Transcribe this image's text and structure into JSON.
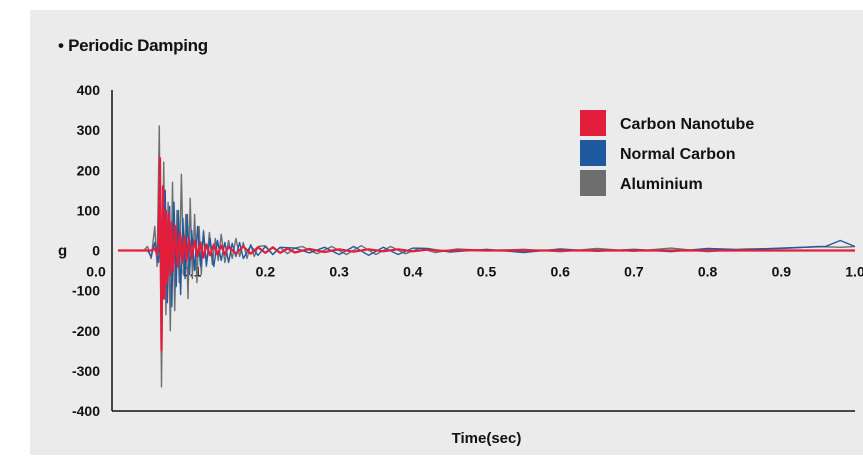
{
  "chart_data": {
    "type": "line",
    "title": "• Periodic Damping",
    "xlabel": "Time(sec)",
    "ylabel": "g",
    "xlim": [
      0,
      1.0
    ],
    "ylim": [
      -400,
      400
    ],
    "x_ticks": [
      "0.0",
      "0.1",
      "0.2",
      "0.3",
      "0.4",
      "0.5",
      "0.6",
      "0.7",
      "0.8",
      "0.9",
      "1.0"
    ],
    "y_ticks": [
      "400",
      "300",
      "200",
      "100",
      "0",
      "-100",
      "-200",
      "-300",
      "-400"
    ],
    "legend_position": "top-right",
    "grid": false,
    "series": [
      {
        "name": "Aluminium",
        "color": "#6d6e70",
        "x": [
          0,
          0.035,
          0.04,
          0.045,
          0.048,
          0.05,
          0.053,
          0.056,
          0.059,
          0.062,
          0.065,
          0.068,
          0.071,
          0.074,
          0.077,
          0.08,
          0.083,
          0.086,
          0.089,
          0.092,
          0.095,
          0.098,
          0.101,
          0.104,
          0.107,
          0.11,
          0.113,
          0.116,
          0.12,
          0.124,
          0.128,
          0.132,
          0.136,
          0.14,
          0.145,
          0.15,
          0.155,
          0.16,
          0.165,
          0.17,
          0.175,
          0.18,
          0.185,
          0.19,
          0.2,
          0.21,
          0.22,
          0.23,
          0.24,
          0.25,
          0.27,
          0.29,
          0.31,
          0.33,
          0.35,
          0.37,
          0.39,
          0.41,
          0.43,
          0.46,
          0.5,
          0.55,
          0.6,
          0.65,
          0.7,
          0.75,
          0.8,
          0.85,
          0.9,
          0.95,
          0.98,
          1.0
        ],
        "values": [
          0,
          0,
          10,
          -20,
          30,
          60,
          -40,
          310,
          -340,
          220,
          -160,
          120,
          -200,
          170,
          -150,
          100,
          -80,
          190,
          -60,
          90,
          -120,
          130,
          -70,
          90,
          -80,
          60,
          -60,
          50,
          -40,
          45,
          -35,
          30,
          -25,
          40,
          -30,
          25,
          -20,
          30,
          -15,
          20,
          -20,
          15,
          -15,
          10,
          12,
          -10,
          8,
          -8,
          6,
          10,
          -8,
          10,
          -10,
          12,
          -10,
          10,
          -8,
          6,
          -5,
          4,
          0,
          3,
          -3,
          5,
          -2,
          6,
          -3,
          4,
          5,
          10,
          8,
          10
        ]
      },
      {
        "name": "Normal Carbon",
        "color": "#1f5aa0",
        "x": [
          0,
          0.04,
          0.045,
          0.05,
          0.055,
          0.058,
          0.061,
          0.064,
          0.067,
          0.07,
          0.073,
          0.076,
          0.079,
          0.082,
          0.085,
          0.088,
          0.091,
          0.094,
          0.097,
          0.1,
          0.104,
          0.108,
          0.112,
          0.116,
          0.12,
          0.125,
          0.13,
          0.135,
          0.14,
          0.145,
          0.15,
          0.155,
          0.16,
          0.165,
          0.17,
          0.18,
          0.19,
          0.2,
          0.21,
          0.22,
          0.24,
          0.26,
          0.28,
          0.3,
          0.32,
          0.34,
          0.36,
          0.38,
          0.4,
          0.42,
          0.45,
          0.5,
          0.55,
          0.6,
          0.65,
          0.7,
          0.75,
          0.8,
          0.85,
          0.9,
          0.93,
          0.96,
          0.98,
          1.0
        ],
        "values": [
          0,
          0,
          -15,
          20,
          -30,
          60,
          -120,
          150,
          -130,
          110,
          -140,
          120,
          -90,
          100,
          -110,
          80,
          -70,
          90,
          -60,
          50,
          -50,
          60,
          -40,
          45,
          -35,
          30,
          -40,
          25,
          -25,
          20,
          -30,
          18,
          -15,
          20,
          -20,
          12,
          -12,
          10,
          -10,
          8,
          6,
          -6,
          8,
          -10,
          10,
          -12,
          8,
          -10,
          6,
          5,
          -4,
          3,
          -5,
          4,
          -2,
          3,
          -3,
          5,
          2,
          6,
          8,
          10,
          25,
          10
        ]
      },
      {
        "name": "Carbon Nanotube",
        "color": "#e31d3c",
        "x": [
          0,
          0.045,
          0.05,
          0.053,
          0.055,
          0.057,
          0.059,
          0.061,
          0.063,
          0.065,
          0.067,
          0.069,
          0.071,
          0.073,
          0.075,
          0.078,
          0.081,
          0.084,
          0.087,
          0.09,
          0.093,
          0.096,
          0.1,
          0.104,
          0.108,
          0.112,
          0.116,
          0.12,
          0.125,
          0.13,
          0.135,
          0.14,
          0.145,
          0.15,
          0.16,
          0.17,
          0.18,
          0.19,
          0.2,
          0.21,
          0.22,
          0.23,
          0.24,
          0.26,
          0.28,
          0.3,
          0.32,
          0.34,
          0.36,
          0.38,
          0.4,
          0.42,
          0.44,
          0.47,
          0.5,
          0.6,
          0.7,
          0.8,
          0.9,
          1.0
        ],
        "values": [
          0,
          0,
          5,
          -10,
          20,
          230,
          -250,
          160,
          -120,
          100,
          -80,
          90,
          -60,
          70,
          -50,
          60,
          -40,
          45,
          -30,
          35,
          -25,
          30,
          -20,
          25,
          -15,
          20,
          -18,
          15,
          -12,
          15,
          -10,
          12,
          -10,
          10,
          -8,
          10,
          -8,
          8,
          -6,
          8,
          -6,
          5,
          -5,
          4,
          -4,
          3,
          -3,
          3,
          -2,
          3,
          -2,
          2,
          -1,
          1,
          0,
          0,
          0,
          0,
          0,
          0
        ]
      }
    ]
  }
}
